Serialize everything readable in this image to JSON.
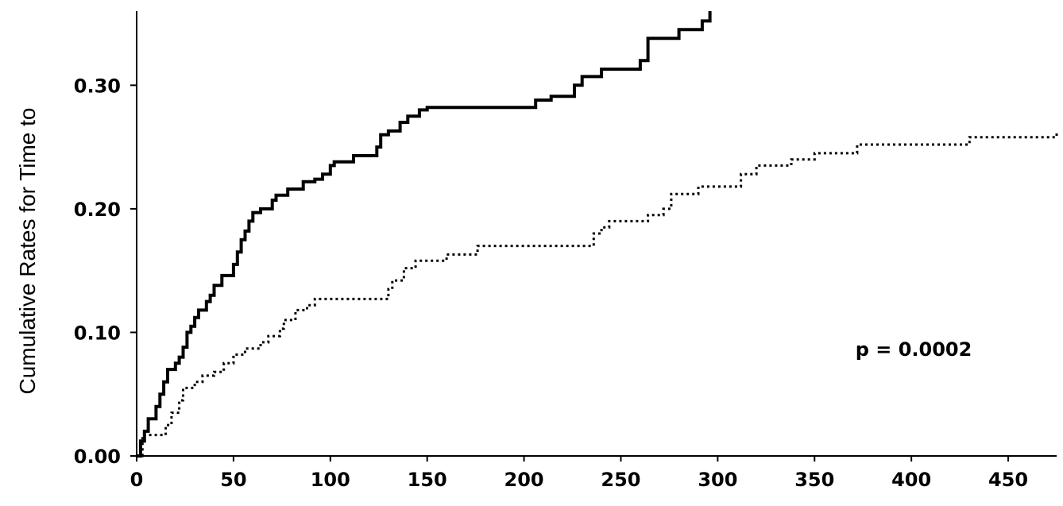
{
  "chart_data": {
    "type": "line",
    "title": "",
    "xlabel": "",
    "ylabel": "Cumulative Rates for Time to",
    "xlim": [
      0,
      475
    ],
    "ylim": [
      0,
      0.36
    ],
    "x_ticks": [
      "0",
      "50",
      "100",
      "150",
      "200",
      "250",
      "300",
      "350",
      "400",
      "450"
    ],
    "y_ticks": [
      "0.00",
      "0.10",
      "0.20",
      "0.30"
    ],
    "grid": false,
    "annotation": "p = 0.0002",
    "series": [
      {
        "style": "solid",
        "color": "#000000",
        "points": [
          [
            0,
            0
          ],
          [
            2,
            0.012
          ],
          [
            4,
            0.02
          ],
          [
            6,
            0.03
          ],
          [
            10,
            0.04
          ],
          [
            12,
            0.05
          ],
          [
            14,
            0.06
          ],
          [
            16,
            0.07
          ],
          [
            20,
            0.075
          ],
          [
            22,
            0.08
          ],
          [
            24,
            0.088
          ],
          [
            26,
            0.1
          ],
          [
            28,
            0.105
          ],
          [
            30,
            0.112
          ],
          [
            32,
            0.118
          ],
          [
            36,
            0.125
          ],
          [
            38,
            0.13
          ],
          [
            40,
            0.138
          ],
          [
            44,
            0.146
          ],
          [
            50,
            0.155
          ],
          [
            52,
            0.165
          ],
          [
            54,
            0.175
          ],
          [
            56,
            0.182
          ],
          [
            58,
            0.19
          ],
          [
            60,
            0.197
          ],
          [
            64,
            0.2
          ],
          [
            70,
            0.207
          ],
          [
            72,
            0.211
          ],
          [
            78,
            0.216
          ],
          [
            86,
            0.222
          ],
          [
            92,
            0.224
          ],
          [
            96,
            0.228
          ],
          [
            100,
            0.235
          ],
          [
            102,
            0.238
          ],
          [
            112,
            0.243
          ],
          [
            124,
            0.25
          ],
          [
            126,
            0.26
          ],
          [
            130,
            0.263
          ],
          [
            136,
            0.27
          ],
          [
            140,
            0.275
          ],
          [
            146,
            0.28
          ],
          [
            150,
            0.282
          ],
          [
            200,
            0.282
          ],
          [
            206,
            0.288
          ],
          [
            214,
            0.291
          ],
          [
            226,
            0.3
          ],
          [
            230,
            0.307
          ],
          [
            240,
            0.313
          ],
          [
            260,
            0.32
          ],
          [
            264,
            0.338
          ],
          [
            280,
            0.345
          ],
          [
            292,
            0.352
          ],
          [
            296,
            0.36
          ]
        ]
      },
      {
        "style": "dotted",
        "color": "#000000",
        "points": [
          [
            0,
            0
          ],
          [
            3,
            0.017
          ],
          [
            15,
            0.025
          ],
          [
            18,
            0.035
          ],
          [
            22,
            0.045
          ],
          [
            24,
            0.055
          ],
          [
            30,
            0.06
          ],
          [
            34,
            0.065
          ],
          [
            40,
            0.068
          ],
          [
            45,
            0.075
          ],
          [
            50,
            0.082
          ],
          [
            56,
            0.087
          ],
          [
            64,
            0.092
          ],
          [
            68,
            0.097
          ],
          [
            74,
            0.103
          ],
          [
            76,
            0.11
          ],
          [
            82,
            0.118
          ],
          [
            88,
            0.122
          ],
          [
            92,
            0.127
          ],
          [
            126,
            0.127
          ],
          [
            130,
            0.135
          ],
          [
            132,
            0.142
          ],
          [
            138,
            0.152
          ],
          [
            144,
            0.158
          ],
          [
            160,
            0.163
          ],
          [
            176,
            0.17
          ],
          [
            230,
            0.17
          ],
          [
            236,
            0.18
          ],
          [
            240,
            0.185
          ],
          [
            244,
            0.19
          ],
          [
            264,
            0.195
          ],
          [
            272,
            0.2
          ],
          [
            276,
            0.212
          ],
          [
            290,
            0.218
          ],
          [
            312,
            0.228
          ],
          [
            320,
            0.235
          ],
          [
            338,
            0.24
          ],
          [
            350,
            0.245
          ],
          [
            372,
            0.252
          ],
          [
            430,
            0.258
          ],
          [
            475,
            0.263
          ]
        ]
      }
    ]
  }
}
